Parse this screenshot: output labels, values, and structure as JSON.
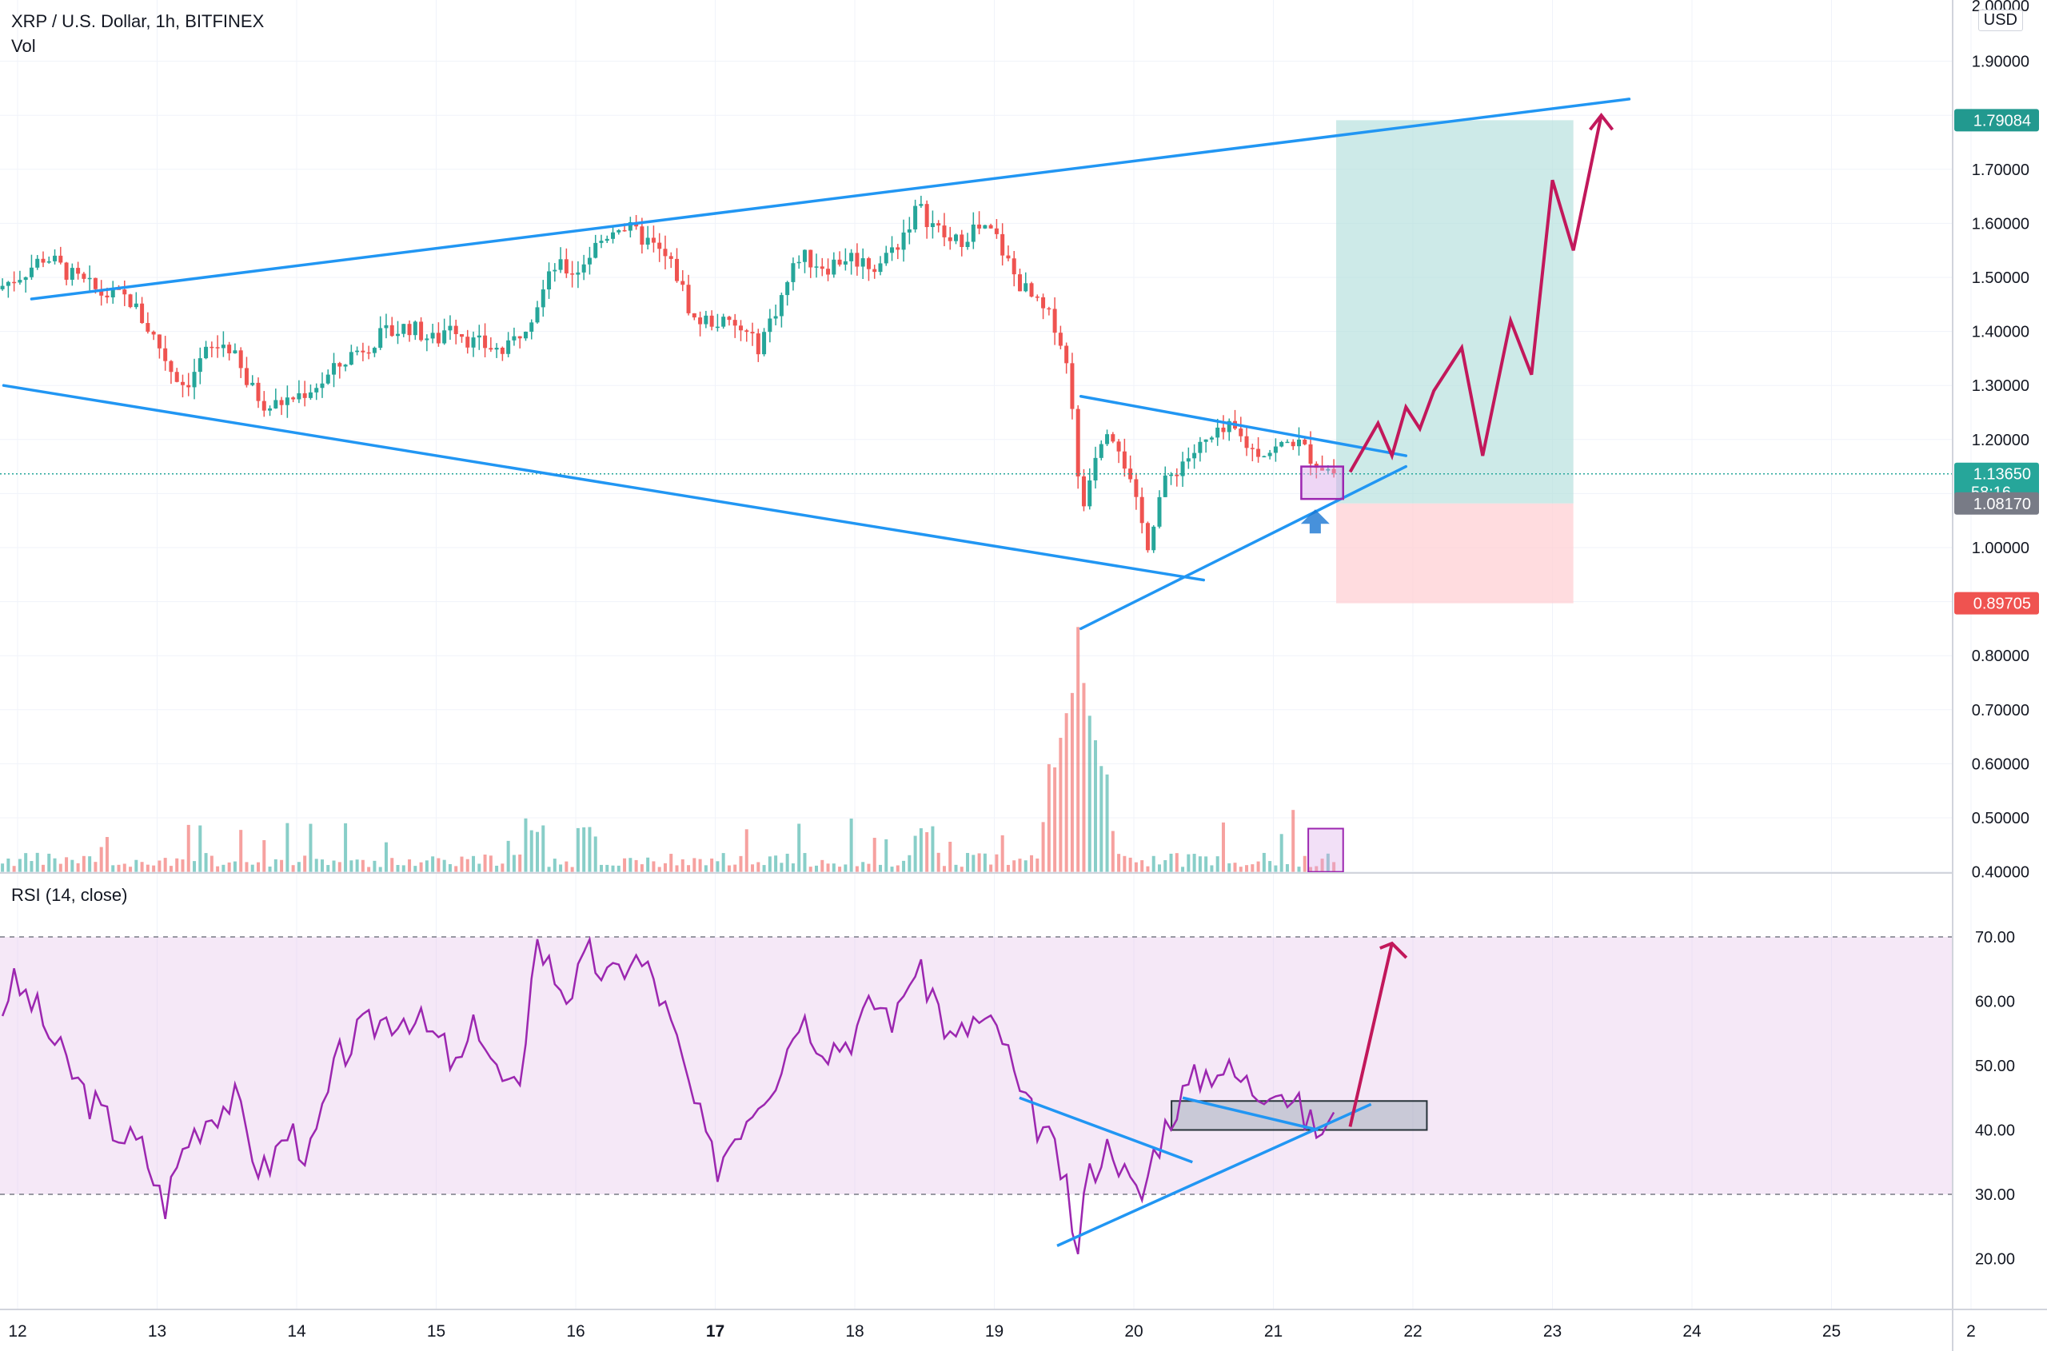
{
  "header": {
    "title": "XRP / U.S. Dollar, 1h, BITFINEX",
    "volume_label": "Vol",
    "rsi_label": "RSI (14, close)"
  },
  "price_axis": {
    "currency": "USD",
    "ticks": [
      "1.90000",
      "1.80000",
      "1.70000",
      "1.60000",
      "1.50000",
      "1.40000",
      "1.30000",
      "1.20000",
      "1.10000",
      "1.00000",
      "0.90000",
      "0.80000",
      "0.70000",
      "0.60000",
      "0.50000",
      "0.40000"
    ],
    "top_tick": "2.00000"
  },
  "rsi_axis": {
    "ticks": [
      "70.00",
      "60.00",
      "50.00",
      "40.00",
      "30.00",
      "20.00"
    ]
  },
  "time_axis": {
    "labels": [
      "12",
      "13",
      "14",
      "15",
      "16",
      "17",
      "18",
      "19",
      "20",
      "21",
      "22",
      "23",
      "24",
      "25",
      "2"
    ],
    "bold_label": "17"
  },
  "badges": {
    "target": "1.79084",
    "current_price": "1.13650",
    "countdown": "58:16",
    "entry": "1.08170",
    "stop": "0.89705"
  },
  "colors": {
    "up": "#26a69a",
    "down": "#ef5350",
    "trendline": "#2196f3",
    "projection": "#c2185b",
    "rsi_line": "#9c27b0",
    "rsi_band": "#e1bee7",
    "target_zone": "#b2dfdb",
    "stop_zone": "#ffcdd2",
    "arrow": "#1976d2"
  },
  "chart_data": {
    "type": "candlestick",
    "symbol": "XRP / U.S. Dollar",
    "interval": "1h",
    "exchange": "BITFINEX",
    "last_price": 1.1365,
    "price_range": [
      0.4,
      2.0
    ],
    "rsi_range": [
      20,
      70
    ],
    "rsi_levels": [
      30,
      70
    ],
    "price_path": [
      [
        11.6,
        1.47
      ],
      [
        11.8,
        1.47
      ],
      [
        12.05,
        1.51
      ],
      [
        12.2,
        1.54
      ],
      [
        12.4,
        1.5
      ],
      [
        12.6,
        1.47
      ],
      [
        12.8,
        1.46
      ],
      [
        13.0,
        1.38
      ],
      [
        13.1,
        1.33
      ],
      [
        13.2,
        1.3
      ],
      [
        13.35,
        1.36
      ],
      [
        13.5,
        1.38
      ],
      [
        13.65,
        1.3
      ],
      [
        13.8,
        1.26
      ],
      [
        14.0,
        1.28
      ],
      [
        14.2,
        1.31
      ],
      [
        14.4,
        1.36
      ],
      [
        14.6,
        1.39
      ],
      [
        14.8,
        1.41
      ],
      [
        15.0,
        1.38
      ],
      [
        15.1,
        1.42
      ],
      [
        15.25,
        1.38
      ],
      [
        15.4,
        1.37
      ],
      [
        15.5,
        1.36
      ],
      [
        15.7,
        1.44
      ],
      [
        15.85,
        1.52
      ],
      [
        16.0,
        1.51
      ],
      [
        16.15,
        1.56
      ],
      [
        16.3,
        1.6
      ],
      [
        16.5,
        1.57
      ],
      [
        16.7,
        1.52
      ],
      [
        16.85,
        1.42
      ],
      [
        17.0,
        1.42
      ],
      [
        17.2,
        1.4
      ],
      [
        17.3,
        1.37
      ],
      [
        17.45,
        1.45
      ],
      [
        17.6,
        1.54
      ],
      [
        17.8,
        1.52
      ],
      [
        17.95,
        1.54
      ],
      [
        18.15,
        1.52
      ],
      [
        18.3,
        1.56
      ],
      [
        18.45,
        1.63
      ],
      [
        18.55,
        1.6
      ],
      [
        18.7,
        1.56
      ],
      [
        18.85,
        1.59
      ],
      [
        19.0,
        1.58
      ],
      [
        19.15,
        1.5
      ],
      [
        19.3,
        1.45
      ],
      [
        19.45,
        1.41
      ],
      [
        19.55,
        1.3
      ],
      [
        19.62,
        1.05
      ],
      [
        19.7,
        1.16
      ],
      [
        19.8,
        1.23
      ],
      [
        19.9,
        1.19
      ],
      [
        20.0,
        1.09
      ],
      [
        20.1,
        1.01
      ],
      [
        20.2,
        1.11
      ],
      [
        20.35,
        1.16
      ],
      [
        20.5,
        1.19
      ],
      [
        20.7,
        1.22
      ],
      [
        20.85,
        1.18
      ],
      [
        21.0,
        1.18
      ],
      [
        21.15,
        1.2
      ],
      [
        21.3,
        1.16
      ],
      [
        21.45,
        1.1365
      ]
    ],
    "volume_spike_day": 19.6,
    "rsi_path": [
      [
        11.6,
        54
      ],
      [
        11.8,
        52
      ],
      [
        11.95,
        63
      ],
      [
        12.1,
        60
      ],
      [
        12.3,
        52
      ],
      [
        12.5,
        45
      ],
      [
        12.7,
        40
      ],
      [
        12.9,
        37
      ],
      [
        13.05,
        28
      ],
      [
        13.2,
        38
      ],
      [
        13.35,
        42
      ],
      [
        13.55,
        45
      ],
      [
        13.75,
        33
      ],
      [
        13.95,
        40
      ],
      [
        14.1,
        36
      ],
      [
        14.3,
        51
      ],
      [
        14.45,
        55
      ],
      [
        14.6,
        57
      ],
      [
        14.8,
        58
      ],
      [
        14.9,
        56
      ],
      [
        15.05,
        53
      ],
      [
        15.15,
        49
      ],
      [
        15.3,
        57
      ],
      [
        15.45,
        48
      ],
      [
        15.6,
        45
      ],
      [
        15.7,
        70
      ],
      [
        15.85,
        64
      ],
      [
        15.95,
        61
      ],
      [
        16.1,
        67
      ],
      [
        16.25,
        63
      ],
      [
        16.4,
        67
      ],
      [
        16.55,
        64
      ],
      [
        16.7,
        55
      ],
      [
        16.85,
        44
      ],
      [
        17.0,
        34
      ],
      [
        17.15,
        40
      ],
      [
        17.3,
        45
      ],
      [
        17.45,
        49
      ],
      [
        17.6,
        58
      ],
      [
        17.8,
        53
      ],
      [
        17.95,
        54
      ],
      [
        18.15,
        60
      ],
      [
        18.3,
        57
      ],
      [
        18.4,
        65
      ],
      [
        18.55,
        62
      ],
      [
        18.7,
        53
      ],
      [
        18.85,
        57
      ],
      [
        19.05,
        55
      ],
      [
        19.2,
        44
      ],
      [
        19.35,
        40
      ],
      [
        19.5,
        33
      ],
      [
        19.58,
        19
      ],
      [
        19.65,
        31
      ],
      [
        19.75,
        36
      ],
      [
        19.85,
        38
      ],
      [
        19.95,
        32
      ],
      [
        20.05,
        29
      ],
      [
        20.15,
        37
      ],
      [
        20.3,
        44
      ],
      [
        20.45,
        48
      ],
      [
        20.6,
        50
      ],
      [
        20.75,
        48
      ],
      [
        20.9,
        46
      ],
      [
        21.0,
        48
      ],
      [
        21.15,
        44
      ],
      [
        21.3,
        40
      ],
      [
        21.45,
        41
      ]
    ],
    "annotations": {
      "target_zone": [
        1.0817,
        1.79084
      ],
      "stop_zone": [
        0.89705,
        1.0817
      ],
      "projection": [
        [
          21.55,
          1.14
        ],
        [
          21.75,
          1.23
        ],
        [
          21.85,
          1.17
        ],
        [
          21.95,
          1.26
        ],
        [
          22.05,
          1.22
        ],
        [
          22.15,
          1.29
        ],
        [
          22.35,
          1.37
        ],
        [
          22.5,
          1.17
        ],
        [
          22.7,
          1.42
        ],
        [
          22.85,
          1.32
        ],
        [
          23.0,
          1.68
        ],
        [
          23.15,
          1.55
        ],
        [
          23.35,
          1.8
        ]
      ],
      "rsi_projection": [
        [
          21.55,
          40.5
        ],
        [
          21.85,
          69
        ]
      ]
    }
  }
}
